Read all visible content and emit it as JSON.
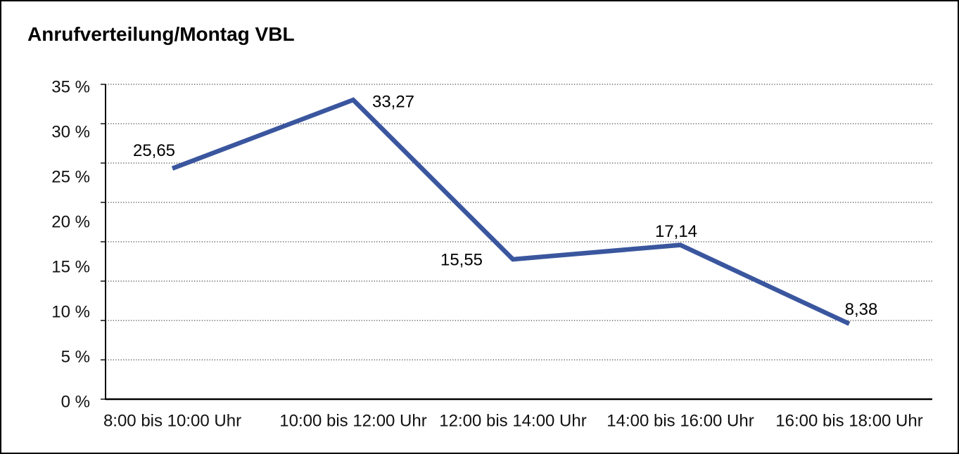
{
  "title": "Anrufverteilung/Montag VBL",
  "chart_data": {
    "type": "line",
    "title": "Anrufverteilung/Montag VBL",
    "categories": [
      "8:00 bis 10:00 Uhr",
      "10:00 bis 12:00 Uhr",
      "12:00 bis 14:00 Uhr",
      "14:00 bis 16:00 Uhr",
      "16:00 bis 18:00 Uhr"
    ],
    "series": [
      {
        "values": [
          25.65,
          33.27,
          15.55,
          17.14,
          8.38
        ],
        "value_labels": [
          "25,65",
          "33,27",
          "15,55",
          "17,14",
          "8,38"
        ],
        "color": "#3A569E"
      }
    ],
    "xlabel": "",
    "ylabel": "",
    "ylim": [
      0,
      35
    ],
    "ytick_values": [
      35,
      30,
      25,
      20,
      15,
      10,
      5,
      0
    ],
    "ytick_labels": [
      "35 %",
      "30 %",
      "25 %",
      "20 %",
      "15 %",
      "10 %",
      "5 %",
      "0 %"
    ],
    "grid": "horizontal-dotted",
    "legend": false
  }
}
